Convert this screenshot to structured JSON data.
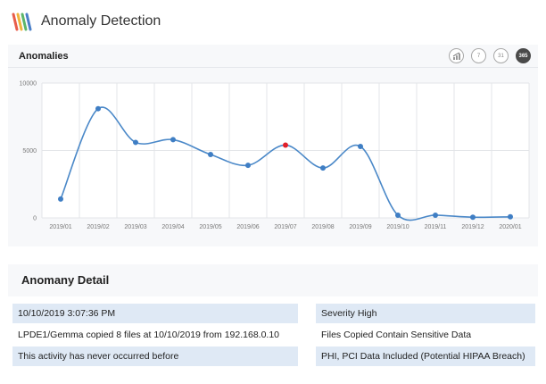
{
  "app": {
    "title": "Anomaly Detection",
    "logo_icon": "striped-logo-icon"
  },
  "panel": {
    "title": "Anomalies",
    "tools": [
      {
        "icon": "chart-toggle-icon",
        "label": "",
        "active": false
      },
      {
        "icon": "7-days-icon",
        "label": "7",
        "active": false
      },
      {
        "icon": "31-days-icon",
        "label": "31",
        "active": false
      },
      {
        "icon": "365-days-icon",
        "label": "365",
        "active": true
      }
    ]
  },
  "chart_data": {
    "type": "line",
    "categories": [
      "2019/01",
      "2019/02",
      "2019/03",
      "2019/04",
      "2019/05",
      "2019/06",
      "2019/07",
      "2019/08",
      "2019/09",
      "2019/10",
      "2019/11",
      "2019/12",
      "2020/01"
    ],
    "series": [
      {
        "values": [
          1400,
          8100,
          5600,
          5800,
          4700,
          3900,
          5400,
          3700,
          5300,
          200,
          200,
          50,
          80
        ]
      }
    ],
    "highlight_index": 6,
    "ylim": [
      0,
      10000
    ],
    "yticks": [
      "0",
      "5000",
      "10000"
    ],
    "grid": true,
    "colors": {
      "line": "#4a88c8",
      "point": "#3f7ec4",
      "highlight": "#e0202a",
      "grid": "#e3e5e8"
    }
  },
  "detail": {
    "title": "Anomany Detail",
    "left": [
      "10/10/2019 3:07:36 PM",
      "LPDE1/Gemma copied 8 files at 10/10/2019 from 192.168.0.10",
      "This activity has never occurred before"
    ],
    "right": [
      "Severity High",
      "Files Copied Contain Sensitive Data",
      "PHI, PCI Data Included (Potential HIPAA Breach)"
    ]
  }
}
